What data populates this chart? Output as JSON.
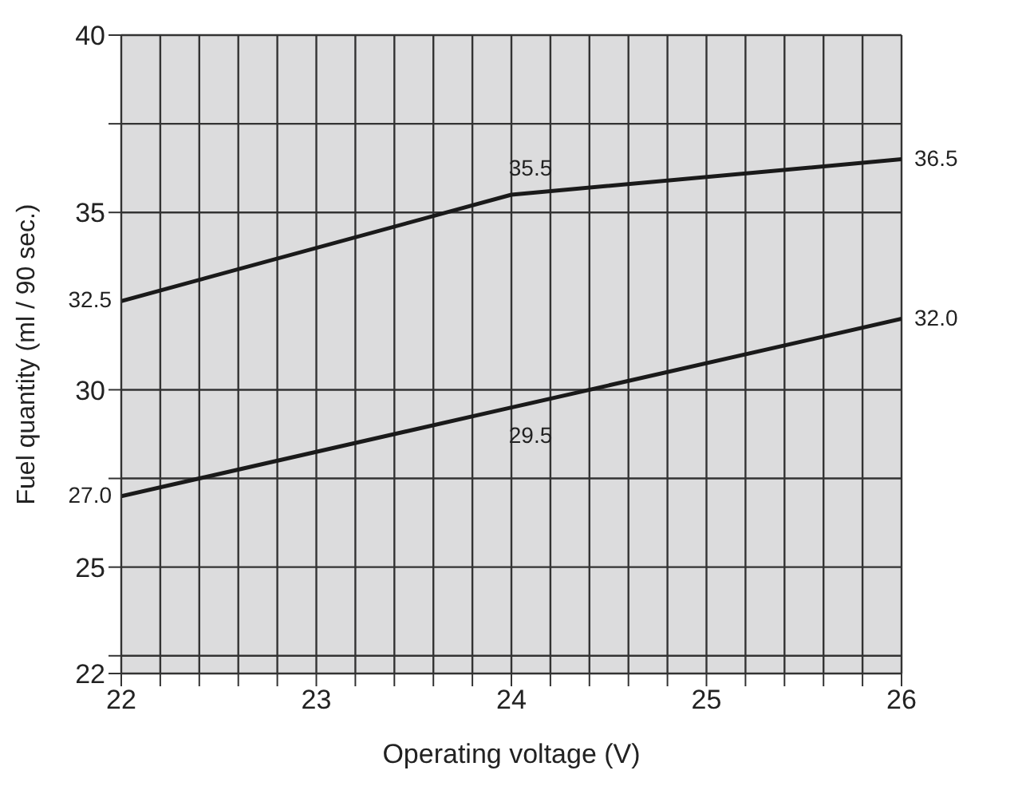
{
  "chart_data": {
    "type": "line",
    "xlabel": "Operating voltage (V)",
    "ylabel": "Fuel quantity (ml / 90 sec.)",
    "xlim": [
      22,
      26
    ],
    "ylim": [
      22,
      40
    ],
    "xticks": [
      22,
      {
        "value": 22.2,
        "label": null
      },
      {
        "value": 22.4,
        "label": null
      },
      {
        "value": 22.6,
        "label": null
      },
      {
        "value": 22.8,
        "label": null
      },
      23,
      {
        "value": 23.2,
        "label": null
      },
      {
        "value": 23.4,
        "label": null
      },
      {
        "value": 23.6,
        "label": null
      },
      {
        "value": 23.8,
        "label": null
      },
      24,
      {
        "value": 24.2,
        "label": null
      },
      {
        "value": 24.4,
        "label": null
      },
      {
        "value": 24.6,
        "label": null
      },
      {
        "value": 24.8,
        "label": null
      },
      25,
      {
        "value": 25.2,
        "label": null
      },
      {
        "value": 25.4,
        "label": null
      },
      {
        "value": 25.6,
        "label": null
      },
      {
        "value": 25.8,
        "label": null
      },
      26
    ],
    "yticks": [
      22,
      {
        "value": 22.5,
        "label": null
      },
      25,
      {
        "value": 27.5,
        "label": null
      },
      30,
      35,
      {
        "value": 37.5,
        "label": null
      },
      40
    ],
    "grid": true,
    "marker": "none",
    "line_style": "solid",
    "series": [
      {
        "color": "#1a1a1a",
        "x": [
          22,
          24,
          26
        ],
        "values": [
          32.5,
          35.5,
          36.5
        ],
        "value_labels": [
          "32.5",
          "35.5",
          "36.5"
        ]
      },
      {
        "color": "#1a1a1a",
        "x": [
          22,
          24,
          26
        ],
        "values": [
          27.0,
          29.5,
          32.0
        ],
        "value_labels": [
          "27.0",
          "29.5",
          "32.0"
        ]
      }
    ]
  }
}
